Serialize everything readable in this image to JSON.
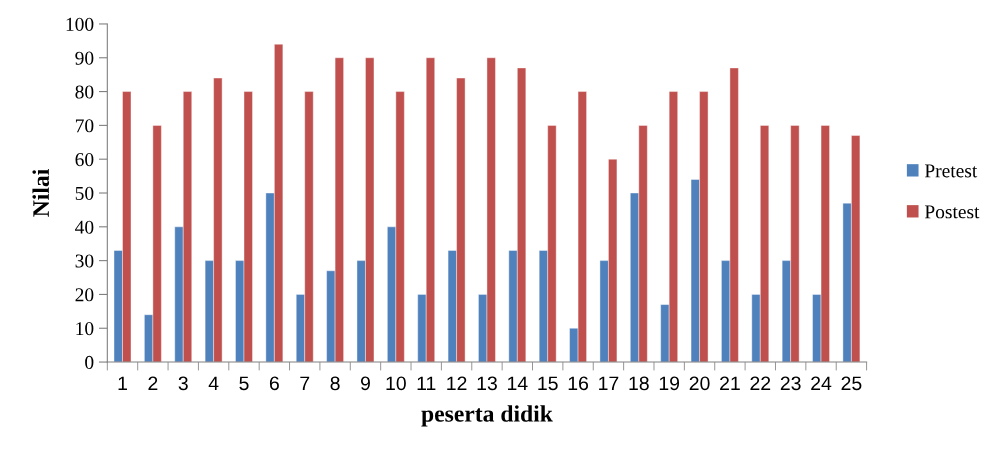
{
  "chart_data": {
    "type": "bar",
    "xlabel": "peserta didik",
    "ylabel": "Nilai",
    "categories": [
      "1",
      "2",
      "3",
      "4",
      "5",
      "6",
      "7",
      "8",
      "9",
      "10",
      "11",
      "12",
      "13",
      "14",
      "15",
      "16",
      "17",
      "18",
      "19",
      "20",
      "21",
      "22",
      "23",
      "24",
      "25"
    ],
    "series": [
      {
        "name": "Pretest",
        "color": "#4f81bd",
        "values": [
          33,
          14,
          40,
          30,
          30,
          50,
          20,
          27,
          30,
          40,
          20,
          33,
          20,
          33,
          33,
          10,
          30,
          50,
          17,
          54,
          30,
          20,
          30,
          20,
          47
        ]
      },
      {
        "name": "Postest",
        "color": "#c0504d",
        "values": [
          80,
          70,
          80,
          84,
          80,
          94,
          80,
          90,
          90,
          80,
          90,
          84,
          90,
          87,
          70,
          80,
          60,
          70,
          80,
          80,
          87,
          70,
          70,
          70,
          67
        ]
      }
    ],
    "ylim": [
      0,
      100
    ],
    "yticks": [
      0,
      10,
      20,
      30,
      40,
      50,
      60,
      70,
      80,
      90,
      100
    ],
    "grid": false,
    "legend": "right"
  }
}
